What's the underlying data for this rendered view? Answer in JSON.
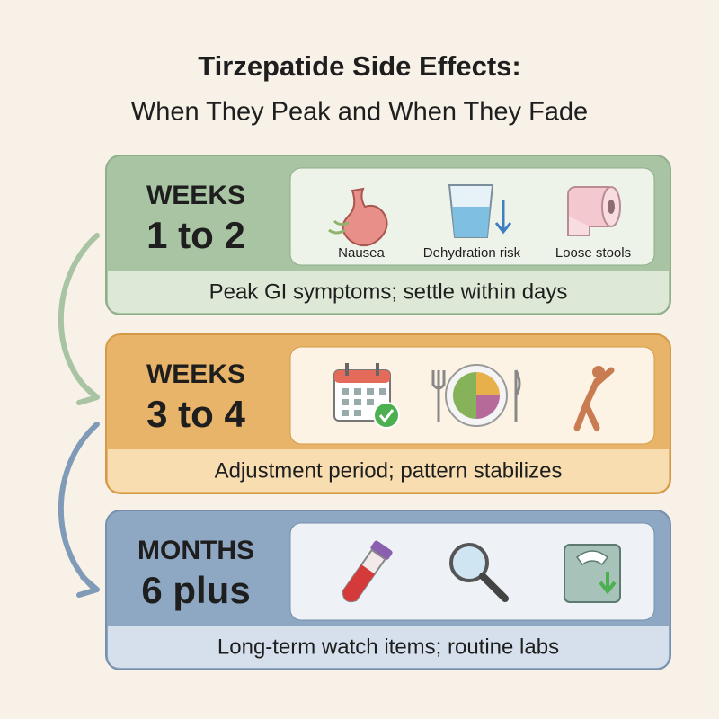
{
  "title": {
    "line1": "Tirzepatide Side Effects:",
    "line2": "When They Peak and When They Fade"
  },
  "stages": [
    {
      "period": "WEEKS",
      "range": "1 to 2",
      "icon_labels": [
        "Nausea",
        "Dehydration risk",
        "Loose stools"
      ],
      "summary": "Peak GI symptoms; settle within days"
    },
    {
      "period": "WEEKS",
      "range": "3 to 4",
      "summary": "Adjustment period; pattern stabilizes"
    },
    {
      "period": "MONTHS",
      "range": "6 plus",
      "summary": "Long-term watch items; routine labs"
    }
  ]
}
